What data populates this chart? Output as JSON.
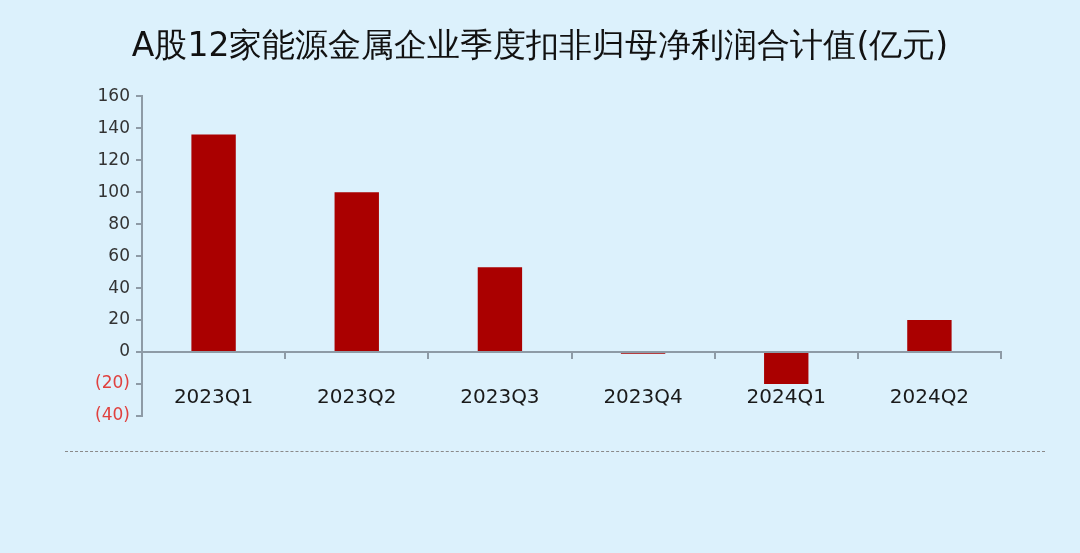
{
  "chart_data": {
    "type": "bar",
    "title": "A股12家能源金属企业季度扣非归母净利润合计值(亿元)",
    "categories": [
      "2023Q1",
      "2023Q2",
      "2023Q3",
      "2023Q4",
      "2024Q1",
      "2024Q2"
    ],
    "values": [
      136,
      100,
      53,
      -1,
      -20,
      20
    ],
    "color": "#aa0000",
    "ylim": [
      -40,
      160
    ],
    "yticks": [
      {
        "value": -40,
        "label": "(40)"
      },
      {
        "value": -20,
        "label": "(20)"
      },
      0,
      20,
      40,
      60,
      80,
      100,
      120,
      140,
      160
    ],
    "grid": false,
    "legend": false
  }
}
